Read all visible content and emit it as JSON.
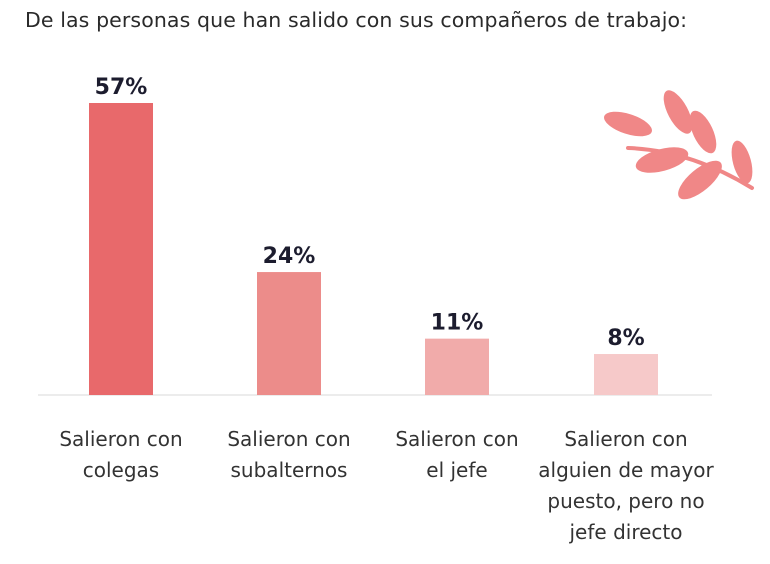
{
  "chart_data": {
    "type": "bar",
    "title": "De las personas que han salido con sus compañeros de trabajo:",
    "categories": [
      [
        "Salieron con",
        "colegas"
      ],
      [
        "Salieron con",
        "subalternos"
      ],
      [
        "Salieron con",
        "el jefe"
      ],
      [
        "Salieron con",
        "alguien de mayor",
        "puesto, pero no",
        "jefe directo"
      ]
    ],
    "values": [
      57,
      24,
      11,
      8
    ],
    "value_labels": [
      "57%",
      "24%",
      "11%",
      "8%"
    ],
    "ylim": [
      0,
      57
    ],
    "grid": false,
    "legend": "none",
    "bar_colors": [
      "#e8696b",
      "#ec8c8a",
      "#f1abaa",
      "#f6c9c9"
    ]
  },
  "decoration": {
    "icon": "leaf-branch-icon",
    "color": "#f08787"
  }
}
